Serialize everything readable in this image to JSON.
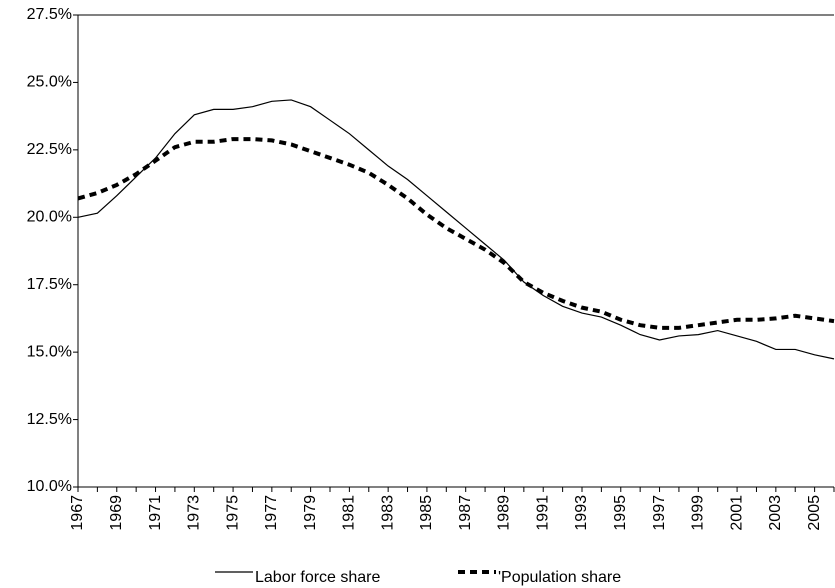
{
  "chart_data": {
    "type": "line",
    "x": [
      1967,
      1968,
      1969,
      1970,
      1971,
      1972,
      1973,
      1974,
      1975,
      1976,
      1977,
      1978,
      1979,
      1980,
      1981,
      1982,
      1983,
      1984,
      1985,
      1986,
      1987,
      1988,
      1989,
      1990,
      1991,
      1992,
      1993,
      1994,
      1995,
      1996,
      1997,
      1998,
      1999,
      2000,
      2001,
      2002,
      2003,
      2004,
      2005,
      2006
    ],
    "xlim": [
      1967,
      2006
    ],
    "xticks": [
      1967,
      1969,
      1971,
      1973,
      1975,
      1977,
      1979,
      1981,
      1983,
      1985,
      1987,
      1989,
      1991,
      1993,
      1995,
      1997,
      1999,
      2001,
      2003,
      2005
    ],
    "ylim": [
      10,
      27.5
    ],
    "yticks": [
      {
        "value": 10,
        "label": "10.0%"
      },
      {
        "value": 12.5,
        "label": "12.5%"
      },
      {
        "value": 15,
        "label": "15.0%"
      },
      {
        "value": 17.5,
        "label": "17.5%"
      },
      {
        "value": 20,
        "label": "20.0%"
      },
      {
        "value": 22.5,
        "label": "22.5%"
      },
      {
        "value": 25,
        "label": "25.0%"
      },
      {
        "value": 27.5,
        "label": "27.5%"
      }
    ],
    "series": [
      {
        "name": "Labor force share",
        "color": "#000000",
        "dash": "solid",
        "values": [
          20.0,
          20.15,
          20.8,
          21.5,
          22.2,
          23.1,
          23.8,
          24.0,
          24.0,
          24.1,
          24.3,
          24.35,
          24.1,
          23.6,
          23.1,
          22.5,
          21.9,
          21.4,
          20.8,
          20.2,
          19.6,
          19.0,
          18.4,
          17.6,
          17.1,
          16.7,
          16.45,
          16.3,
          16.0,
          15.65,
          15.45,
          15.6,
          15.65,
          15.8,
          15.6,
          15.4,
          15.1,
          15.1,
          14.9,
          14.75
        ]
      },
      {
        "name": "'Population share",
        "color": "#000000",
        "dash": "dashed",
        "values": [
          20.7,
          20.9,
          21.2,
          21.6,
          22.1,
          22.6,
          22.8,
          22.8,
          22.9,
          22.9,
          22.85,
          22.7,
          22.45,
          22.2,
          21.95,
          21.65,
          21.2,
          20.7,
          20.1,
          19.6,
          19.2,
          18.8,
          18.3,
          17.6,
          17.2,
          16.9,
          16.65,
          16.5,
          16.2,
          16.0,
          15.9,
          15.9,
          16.0,
          16.1,
          16.2,
          16.2,
          16.25,
          16.35,
          16.25,
          16.15
        ]
      }
    ]
  }
}
